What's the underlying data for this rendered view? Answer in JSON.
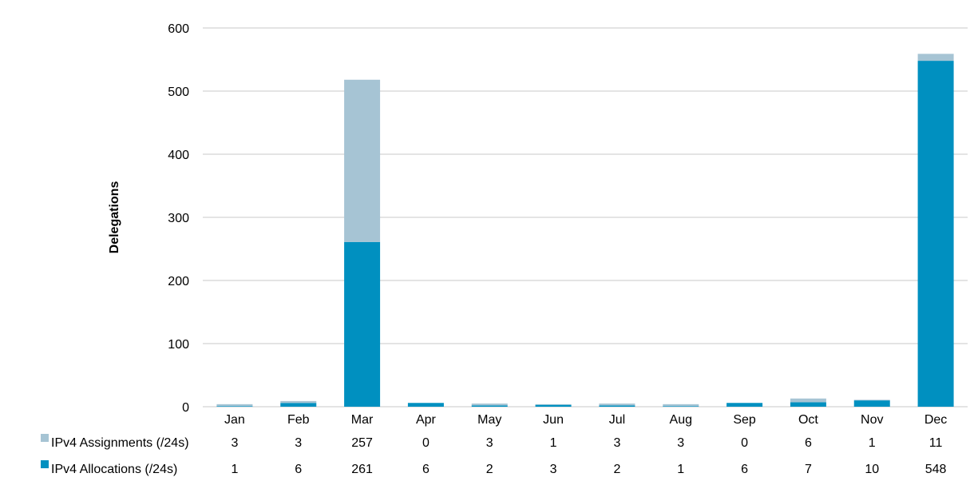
{
  "chart_data": {
    "type": "bar",
    "stacked": true,
    "categories": [
      "Jan",
      "Feb",
      "Mar",
      "Apr",
      "May",
      "Jun",
      "Jul",
      "Aug",
      "Sep",
      "Oct",
      "Nov",
      "Dec"
    ],
    "series": [
      {
        "name": "IPv4 Allocations (/24s)",
        "color": "#0090c0",
        "values": [
          1,
          6,
          261,
          6,
          2,
          3,
          2,
          1,
          6,
          7,
          10,
          548
        ]
      },
      {
        "name": "IPv4 Assignments (/24s)",
        "color": "#a6c4d4",
        "values": [
          3,
          3,
          257,
          0,
          3,
          1,
          3,
          3,
          0,
          6,
          1,
          11
        ]
      }
    ],
    "ylabel": "Delegations",
    "ylim": [
      0,
      600
    ],
    "yticks": [
      0,
      100,
      200,
      300,
      400,
      500,
      600
    ],
    "grid": true,
    "gridColor": "#c8c8c8",
    "data_table": true
  }
}
